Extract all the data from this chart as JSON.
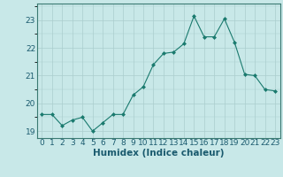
{
  "x": [
    0,
    1,
    2,
    3,
    4,
    5,
    6,
    7,
    8,
    9,
    10,
    11,
    12,
    13,
    14,
    15,
    16,
    17,
    18,
    19,
    20,
    21,
    22,
    23
  ],
  "y": [
    19.6,
    19.6,
    19.2,
    19.4,
    19.5,
    19.0,
    19.3,
    19.6,
    19.6,
    20.3,
    20.6,
    21.4,
    21.8,
    21.85,
    22.15,
    23.15,
    22.4,
    22.4,
    23.05,
    22.2,
    21.05,
    21.0,
    20.5,
    20.45
  ],
  "line_color": "#1a7a6e",
  "marker_color": "#1a7a6e",
  "bg_color": "#c8e8e8",
  "grid_color": "#aacece",
  "xlabel": "Humidex (Indice chaleur)",
  "ylim": [
    18.75,
    23.6
  ],
  "xlim": [
    -0.5,
    23.5
  ],
  "yticks": [
    19,
    20,
    21,
    22,
    23
  ],
  "xticks": [
    0,
    1,
    2,
    3,
    4,
    5,
    6,
    7,
    8,
    9,
    10,
    11,
    12,
    13,
    14,
    15,
    16,
    17,
    18,
    19,
    20,
    21,
    22,
    23
  ],
  "tick_fontsize": 6.5,
  "label_fontsize": 7.5
}
